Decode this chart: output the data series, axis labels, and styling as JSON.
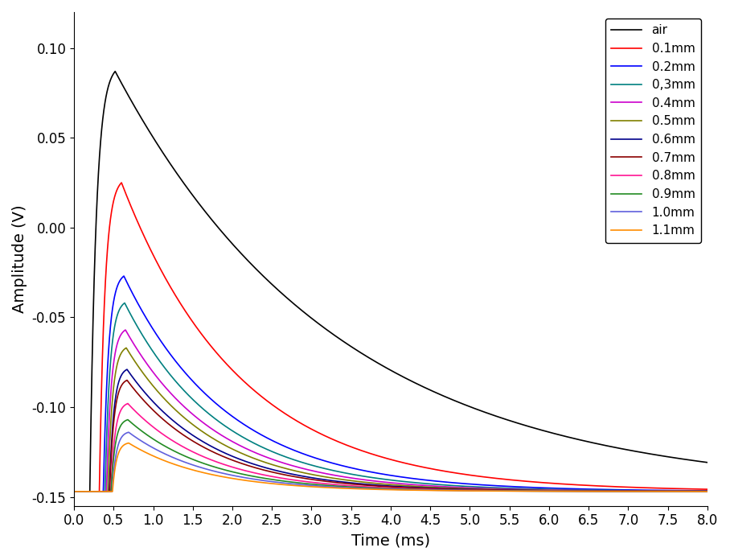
{
  "title": "",
  "xlabel": "Time (ms)",
  "ylabel": "Amplitude (V)",
  "xlim": [
    0.0,
    8.0
  ],
  "ylim": [
    -0.155,
    0.12
  ],
  "xticks": [
    0.0,
    0.5,
    1.0,
    1.5,
    2.0,
    2.5,
    3.0,
    3.5,
    4.0,
    4.5,
    5.0,
    5.5,
    6.0,
    6.5,
    7.0,
    7.5,
    8.0
  ],
  "yticks": [
    -0.15,
    -0.1,
    -0.05,
    0.0,
    0.05,
    0.1
  ],
  "series": [
    {
      "label": "air",
      "color": "#000000",
      "baseline": -0.147,
      "peak": 0.087,
      "t_peak": 0.52,
      "rise_tau": 0.08,
      "decay_tau": 2.8
    },
    {
      "label": "0.1mm",
      "color": "#ff0000",
      "baseline": -0.147,
      "peak": 0.025,
      "t_peak": 0.6,
      "rise_tau": 0.07,
      "decay_tau": 1.5
    },
    {
      "label": "0.2mm",
      "color": "#0000ff",
      "baseline": -0.147,
      "peak": -0.027,
      "t_peak": 0.63,
      "rise_tau": 0.065,
      "decay_tau": 1.3
    },
    {
      "label": "0,3mm",
      "color": "#008080",
      "baseline": -0.147,
      "peak": -0.042,
      "t_peak": 0.64,
      "rise_tau": 0.062,
      "decay_tau": 1.2
    },
    {
      "label": "0.4mm",
      "color": "#cc00cc",
      "baseline": -0.147,
      "peak": -0.057,
      "t_peak": 0.65,
      "rise_tau": 0.06,
      "decay_tau": 1.15
    },
    {
      "label": "0.5mm",
      "color": "#808000",
      "baseline": -0.147,
      "peak": -0.067,
      "t_peak": 0.66,
      "rise_tau": 0.058,
      "decay_tau": 1.1
    },
    {
      "label": "0.6mm",
      "color": "#00008b",
      "baseline": -0.147,
      "peak": -0.079,
      "t_peak": 0.67,
      "rise_tau": 0.056,
      "decay_tau": 1.07
    },
    {
      "label": "0.7mm",
      "color": "#8b0000",
      "baseline": -0.147,
      "peak": -0.085,
      "t_peak": 0.67,
      "rise_tau": 0.055,
      "decay_tau": 1.05
    },
    {
      "label": "0.8mm",
      "color": "#ff1493",
      "baseline": -0.147,
      "peak": -0.098,
      "t_peak": 0.68,
      "rise_tau": 0.054,
      "decay_tau": 1.03
    },
    {
      "label": "0.9mm",
      "color": "#228b22",
      "baseline": -0.147,
      "peak": -0.107,
      "t_peak": 0.68,
      "rise_tau": 0.053,
      "decay_tau": 1.02
    },
    {
      "label": "1.0mm",
      "color": "#6060dd",
      "baseline": -0.147,
      "peak": -0.114,
      "t_peak": 0.69,
      "rise_tau": 0.052,
      "decay_tau": 1.01
    },
    {
      "label": "1.1mm",
      "color": "#ff8c00",
      "baseline": -0.147,
      "peak": -0.12,
      "t_peak": 0.69,
      "rise_tau": 0.051,
      "decay_tau": 1.0
    }
  ],
  "figsize": [
    9.08,
    6.96
  ],
  "dpi": 100
}
